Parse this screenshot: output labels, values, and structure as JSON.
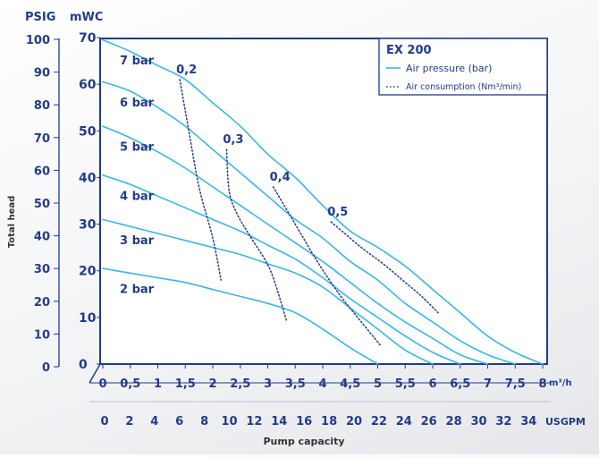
{
  "chart_data": {
    "type": "line",
    "title": "",
    "legend": {
      "title": "EX 200",
      "placement": "top-right",
      "items": [
        {
          "label": "Air pressure (bar)",
          "style": "solid"
        },
        {
          "label": "Air consumption (Nm³/min)",
          "style": "dotted"
        }
      ]
    },
    "xlabel": "Pump capacity",
    "ylabel": "Total head",
    "x_axis": {
      "unit": "m³/h",
      "ticks": [
        "0",
        "0,5",
        "1",
        "1,5",
        "2",
        "2,5",
        "3",
        "3,5",
        "4",
        "4,5",
        "5",
        "5,5",
        "6",
        "6,5",
        "7",
        "7,5",
        "8"
      ],
      "range": [
        0,
        8
      ]
    },
    "x_axis_secondary": {
      "unit": "USGPM",
      "ticks": [
        "0",
        "2",
        "4",
        "6",
        "8",
        "10",
        "12",
        "14",
        "16",
        "18",
        "20",
        "22",
        "24",
        "26",
        "28",
        "30",
        "32",
        "34"
      ]
    },
    "y_axis": {
      "unit": "mWC",
      "ticks": [
        "0",
        "10",
        "20",
        "30",
        "40",
        "50",
        "60",
        "70"
      ],
      "range": [
        0,
        70
      ]
    },
    "y_axis_secondary": {
      "unit": "PSIG",
      "ticks": [
        "0",
        "10",
        "20",
        "30",
        "40",
        "50",
        "60",
        "70",
        "80",
        "90",
        "100"
      ]
    },
    "grid": false,
    "series": [
      {
        "name": "7 bar",
        "style": "solid",
        "x": [
          0,
          0.5,
          1,
          1.5,
          2,
          2.5,
          3,
          3.5,
          4,
          4.5,
          5,
          5.5,
          6,
          6.5,
          7,
          7.5,
          8
        ],
        "y": [
          69.5,
          67,
          64,
          61,
          56,
          51,
          45,
          40,
          34,
          28.5,
          25,
          21,
          16,
          11,
          6,
          2.5,
          0
        ]
      },
      {
        "name": "6 bar",
        "style": "solid",
        "x": [
          0,
          0.5,
          1,
          1.5,
          2,
          2.5,
          3,
          3.5,
          4,
          4.5,
          5,
          5.5,
          6,
          6.5,
          7,
          7.5
        ],
        "y": [
          60.5,
          58.5,
          55,
          51,
          46,
          41,
          36,
          31,
          27,
          22,
          18,
          13,
          9,
          5,
          2,
          0
        ]
      },
      {
        "name": "5 bar",
        "style": "solid",
        "x": [
          0,
          0.5,
          1,
          1.5,
          2,
          2.5,
          3,
          3.5,
          4,
          4.5,
          5,
          5.5,
          6,
          6.5,
          7
        ],
        "y": [
          51,
          48.5,
          45.5,
          42,
          38,
          34,
          30,
          26,
          22,
          17.5,
          13,
          9,
          5.5,
          2,
          0
        ]
      },
      {
        "name": "4 bar",
        "style": "solid",
        "x": [
          0,
          0.5,
          1,
          1.5,
          2,
          2.5,
          3,
          3.5,
          4,
          4.5,
          5,
          5.5,
          6,
          6.5
        ],
        "y": [
          40.5,
          38.5,
          36,
          33.5,
          31,
          28.5,
          25.5,
          22.5,
          18.5,
          14,
          10,
          6,
          2.5,
          0
        ]
      },
      {
        "name": "3 bar",
        "style": "solid",
        "x": [
          0,
          0.5,
          1,
          1.5,
          2,
          2.5,
          3,
          3.5,
          4,
          4.5,
          5,
          5.5,
          6
        ],
        "y": [
          31,
          29.5,
          28,
          26.5,
          25,
          23.5,
          21.5,
          19.5,
          16.5,
          12,
          7.5,
          3,
          0
        ]
      },
      {
        "name": "2 bar",
        "style": "solid",
        "x": [
          0,
          0.5,
          1,
          1.5,
          2,
          2.5,
          3,
          3.5,
          4,
          4.5,
          5
        ],
        "y": [
          20.5,
          19.5,
          18.5,
          17.5,
          16,
          14.5,
          13,
          11,
          7.5,
          3.5,
          0
        ]
      },
      {
        "name": "0,2",
        "style": "dotted",
        "x": [
          1.4,
          1.55,
          1.75,
          2.0,
          2.15
        ],
        "y": [
          61,
          51,
          38,
          27,
          18
        ]
      },
      {
        "name": "0,3",
        "style": "dotted",
        "x": [
          2.25,
          2.3,
          2.45,
          2.7,
          3.05,
          3.35
        ],
        "y": [
          46,
          37,
          32,
          27,
          20,
          9
        ]
      },
      {
        "name": "0,4",
        "style": "dotted",
        "x": [
          3.1,
          3.35,
          3.55,
          3.9,
          4.3,
          4.6,
          5.05
        ],
        "y": [
          38,
          33,
          29,
          22,
          15,
          10.5,
          4
        ]
      },
      {
        "name": "0,5",
        "style": "dotted",
        "x": [
          4.15,
          4.4,
          4.7,
          5.1,
          5.5,
          5.8,
          6.1
        ],
        "y": [
          30.5,
          28,
          25,
          21.5,
          17.5,
          14.5,
          11
        ]
      }
    ],
    "annotations": {
      "pressure_labels": [
        "7 bar",
        "6 bar",
        "5 bar",
        "4 bar",
        "3 bar",
        "2 bar"
      ],
      "consumption_labels": [
        "0,2",
        "0,3",
        "0,4",
        "0,5"
      ]
    }
  }
}
